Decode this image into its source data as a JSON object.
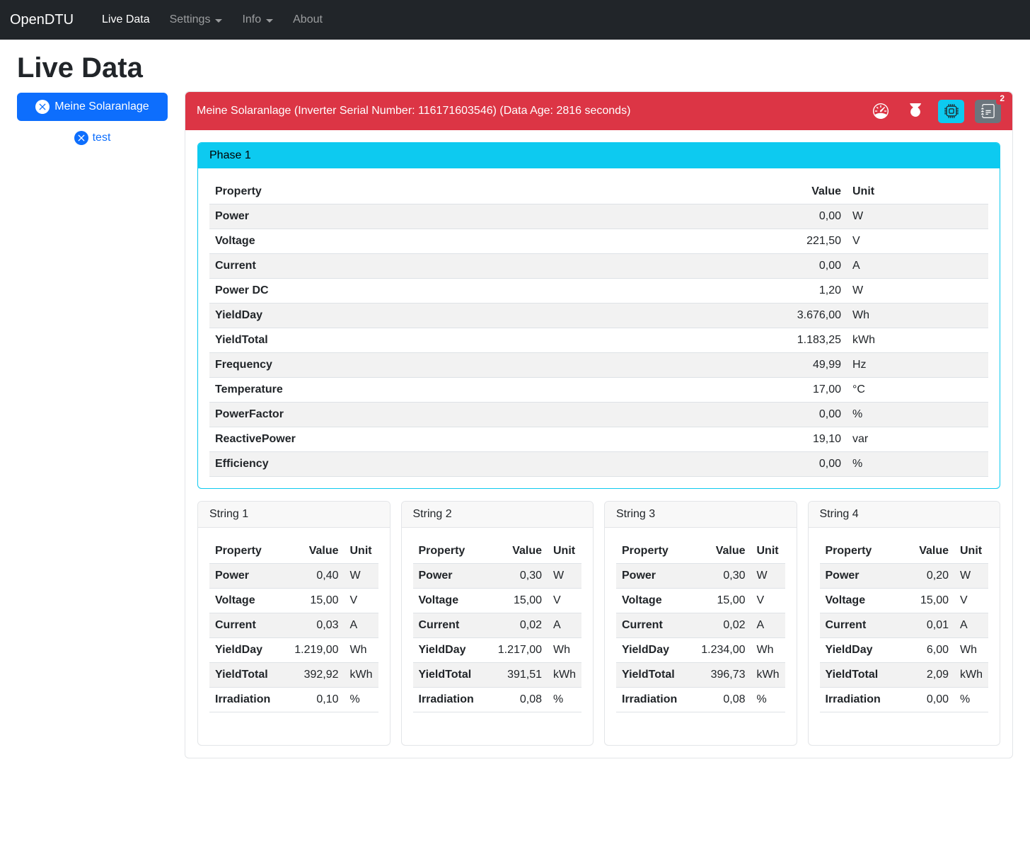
{
  "navbar": {
    "brand": "OpenDTU",
    "items": [
      {
        "label": "Live Data"
      },
      {
        "label": "Settings"
      },
      {
        "label": "Info"
      },
      {
        "label": "About"
      }
    ]
  },
  "page_title": "Live Data",
  "sidebar": {
    "inverter_button_label": "Meine Solaranlage",
    "secondary_item_label": "test"
  },
  "inverter_card": {
    "header_text": "Meine Solaranlage (Inverter Serial Number: 116171603546) (Data Age: 2816 seconds)",
    "event_badge_count": "2",
    "icons": [
      "speedometer-icon",
      "power-icon",
      "cpu-icon",
      "journal-text-icon"
    ]
  },
  "phase_card": {
    "title": "Phase 1",
    "columns": {
      "property": "Property",
      "value": "Value",
      "unit": "Unit"
    },
    "rows": [
      {
        "property": "Power",
        "value": "0,00",
        "unit": "W"
      },
      {
        "property": "Voltage",
        "value": "221,50",
        "unit": "V"
      },
      {
        "property": "Current",
        "value": "0,00",
        "unit": "A"
      },
      {
        "property": "Power DC",
        "value": "1,20",
        "unit": "W"
      },
      {
        "property": "YieldDay",
        "value": "3.676,00",
        "unit": "Wh"
      },
      {
        "property": "YieldTotal",
        "value": "1.183,25",
        "unit": "kWh"
      },
      {
        "property": "Frequency",
        "value": "49,99",
        "unit": "Hz"
      },
      {
        "property": "Temperature",
        "value": "17,00",
        "unit": "°C"
      },
      {
        "property": "PowerFactor",
        "value": "0,00",
        "unit": "%"
      },
      {
        "property": "ReactivePower",
        "value": "19,10",
        "unit": "var"
      },
      {
        "property": "Efficiency",
        "value": "0,00",
        "unit": "%"
      }
    ]
  },
  "string_cards": [
    {
      "title": "String 1",
      "columns": {
        "property": "Property",
        "value": "Value",
        "unit": "Unit"
      },
      "rows": [
        {
          "property": "Power",
          "value": "0,40",
          "unit": "W"
        },
        {
          "property": "Voltage",
          "value": "15,00",
          "unit": "V"
        },
        {
          "property": "Current",
          "value": "0,03",
          "unit": "A"
        },
        {
          "property": "YieldDay",
          "value": "1.219,00",
          "unit": "Wh"
        },
        {
          "property": "YieldTotal",
          "value": "392,92",
          "unit": "kWh"
        },
        {
          "property": "Irradiation",
          "value": "0,10",
          "unit": "%"
        }
      ]
    },
    {
      "title": "String 2",
      "columns": {
        "property": "Property",
        "value": "Value",
        "unit": "Unit"
      },
      "rows": [
        {
          "property": "Power",
          "value": "0,30",
          "unit": "W"
        },
        {
          "property": "Voltage",
          "value": "15,00",
          "unit": "V"
        },
        {
          "property": "Current",
          "value": "0,02",
          "unit": "A"
        },
        {
          "property": "YieldDay",
          "value": "1.217,00",
          "unit": "Wh"
        },
        {
          "property": "YieldTotal",
          "value": "391,51",
          "unit": "kWh"
        },
        {
          "property": "Irradiation",
          "value": "0,08",
          "unit": "%"
        }
      ]
    },
    {
      "title": "String 3",
      "columns": {
        "property": "Property",
        "value": "Value",
        "unit": "Unit"
      },
      "rows": [
        {
          "property": "Power",
          "value": "0,30",
          "unit": "W"
        },
        {
          "property": "Voltage",
          "value": "15,00",
          "unit": "V"
        },
        {
          "property": "Current",
          "value": "0,02",
          "unit": "A"
        },
        {
          "property": "YieldDay",
          "value": "1.234,00",
          "unit": "Wh"
        },
        {
          "property": "YieldTotal",
          "value": "396,73",
          "unit": "kWh"
        },
        {
          "property": "Irradiation",
          "value": "0,08",
          "unit": "%"
        }
      ]
    },
    {
      "title": "String 4",
      "columns": {
        "property": "Property",
        "value": "Value",
        "unit": "Unit"
      },
      "rows": [
        {
          "property": "Power",
          "value": "0,20",
          "unit": "W"
        },
        {
          "property": "Voltage",
          "value": "15,00",
          "unit": "V"
        },
        {
          "property": "Current",
          "value": "0,01",
          "unit": "A"
        },
        {
          "property": "YieldDay",
          "value": "6,00",
          "unit": "Wh"
        },
        {
          "property": "YieldTotal",
          "value": "2,09",
          "unit": "kWh"
        },
        {
          "property": "Irradiation",
          "value": "0,00",
          "unit": "%"
        }
      ]
    }
  ],
  "colors": {
    "navbar_bg": "#212529",
    "danger_red": "#dc3545",
    "info_cyan": "#0dcaf0",
    "primary_blue": "#0d6efd",
    "secondary_gray": "#6c757d",
    "stripe_gray": "#f2f2f2"
  }
}
